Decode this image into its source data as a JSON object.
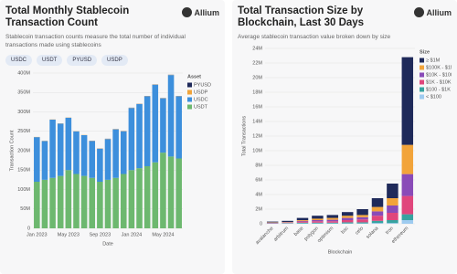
{
  "chart_data": [
    {
      "type": "bar",
      "title": "Total Monthly Stablecoin Transaction Count",
      "subtitle": "Stablecoin transaction counts measure the total number of individual transactions made using stablecoins",
      "brand": "Allium",
      "filters": [
        "USDC",
        "USDT",
        "PYUSD",
        "USDP"
      ],
      "x_label": "Date",
      "y_label": "Transaction Count",
      "legend_title": "Asset",
      "legend": "right",
      "categories": [
        "Jan 2023",
        null,
        null,
        null,
        "May 2023",
        null,
        null,
        null,
        "Sep 2023",
        null,
        null,
        null,
        "Jan 2024",
        null,
        null,
        null,
        "May 2024",
        null,
        null
      ],
      "series": [
        {
          "name": "USDT",
          "color": "#6db86f",
          "values": [
            120000000,
            125000000,
            130000000,
            135000000,
            150000000,
            140000000,
            135000000,
            130000000,
            120000000,
            125000000,
            130000000,
            140000000,
            150000000,
            155000000,
            160000000,
            170000000,
            195000000,
            185000000,
            180000000
          ]
        },
        {
          "name": "USDC",
          "color": "#3d8fdc",
          "values": [
            115000000,
            100000000,
            150000000,
            135000000,
            135000000,
            110000000,
            105000000,
            95000000,
            85000000,
            105000000,
            125000000,
            110000000,
            160000000,
            165000000,
            180000000,
            200000000,
            140000000,
            210000000,
            160000000
          ]
        },
        {
          "name": "USDP",
          "color": "#f0a33a",
          "values": [
            500000,
            500000,
            500000,
            500000,
            500000,
            500000,
            500000,
            500000,
            500000,
            500000,
            500000,
            500000,
            500000,
            500000,
            500000,
            500000,
            500000,
            500000,
            500000
          ]
        },
        {
          "name": "PYUSD",
          "color": "#1f2a5a",
          "values": [
            0,
            0,
            0,
            0,
            0,
            0,
            0,
            200000,
            300000,
            300000,
            300000,
            300000,
            300000,
            300000,
            300000,
            300000,
            300000,
            300000,
            300000
          ]
        }
      ],
      "ylim": [
        0,
        400000000
      ],
      "yticks": [
        0,
        {
          "value": 50000000,
          "label": "50M"
        },
        {
          "value": 100000000,
          "label": "100M"
        },
        {
          "value": 150000000,
          "label": "150M"
        },
        {
          "value": 200000000,
          "label": "200M"
        },
        {
          "value": 250000000,
          "label": "250M"
        },
        {
          "value": 300000000,
          "label": "300M"
        },
        {
          "value": 350000000,
          "label": "350M"
        },
        {
          "value": 400000000,
          "label": "400M"
        }
      ],
      "grid": true
    },
    {
      "type": "bar",
      "title": "Total Transaction Size by Blockchain, Last 30 Days",
      "subtitle": "Average stablecoin transaction value broken down by size",
      "brand": "Allium",
      "x_label": "Blockchain",
      "y_label": "Total Transactions",
      "legend_title": "Size",
      "legend": "right",
      "categories": [
        "avalanche",
        "arbitrum",
        "base",
        "polygon",
        "optimism",
        "bsc",
        "celo",
        "solana",
        "tron",
        "ethereum"
      ],
      "series": [
        {
          "name": "< $100",
          "color": "#9ecbf0",
          "values": [
            20000,
            50000,
            50000,
            50000,
            50000,
            50000,
            50000,
            100000,
            100000,
            500000
          ]
        },
        {
          "name": "$100 - $1K",
          "color": "#37a3a0",
          "values": [
            30000,
            50000,
            100000,
            100000,
            100000,
            150000,
            150000,
            300000,
            400000,
            800000
          ]
        },
        {
          "name": "$1K - $10K",
          "color": "#e0467c",
          "values": [
            50000,
            50000,
            150000,
            200000,
            200000,
            300000,
            400000,
            700000,
            1000000,
            2500000
          ]
        },
        {
          "name": "$10K - $100K",
          "color": "#8a4bb8",
          "values": [
            50000,
            50000,
            100000,
            150000,
            200000,
            300000,
            300000,
            600000,
            1000000,
            3000000
          ]
        },
        {
          "name": "$100K - $1M",
          "color": "#f2a43a",
          "values": [
            50000,
            50000,
            100000,
            200000,
            250000,
            300000,
            300000,
            600000,
            1000000,
            4000000
          ]
        },
        {
          "name": "≥ $1M",
          "color": "#1f2a5a",
          "values": [
            100000,
            150000,
            300000,
            400000,
            400000,
            500000,
            800000,
            1200000,
            2000000,
            12000000
          ]
        }
      ],
      "ylim": [
        0,
        24000000
      ],
      "yticks": [
        0,
        {
          "value": 2000000,
          "label": "2M"
        },
        {
          "value": 4000000,
          "label": "4M"
        },
        {
          "value": 6000000,
          "label": "6M"
        },
        {
          "value": 8000000,
          "label": "8M"
        },
        {
          "value": 10000000,
          "label": "10M"
        },
        {
          "value": 12000000,
          "label": "12M"
        },
        {
          "value": 14000000,
          "label": "14M"
        },
        {
          "value": 16000000,
          "label": "16M"
        },
        {
          "value": 18000000,
          "label": "18M"
        },
        {
          "value": 20000000,
          "label": "20M"
        },
        {
          "value": 22000000,
          "label": "22M"
        },
        {
          "value": 24000000,
          "label": "24M"
        }
      ],
      "grid": true
    }
  ]
}
